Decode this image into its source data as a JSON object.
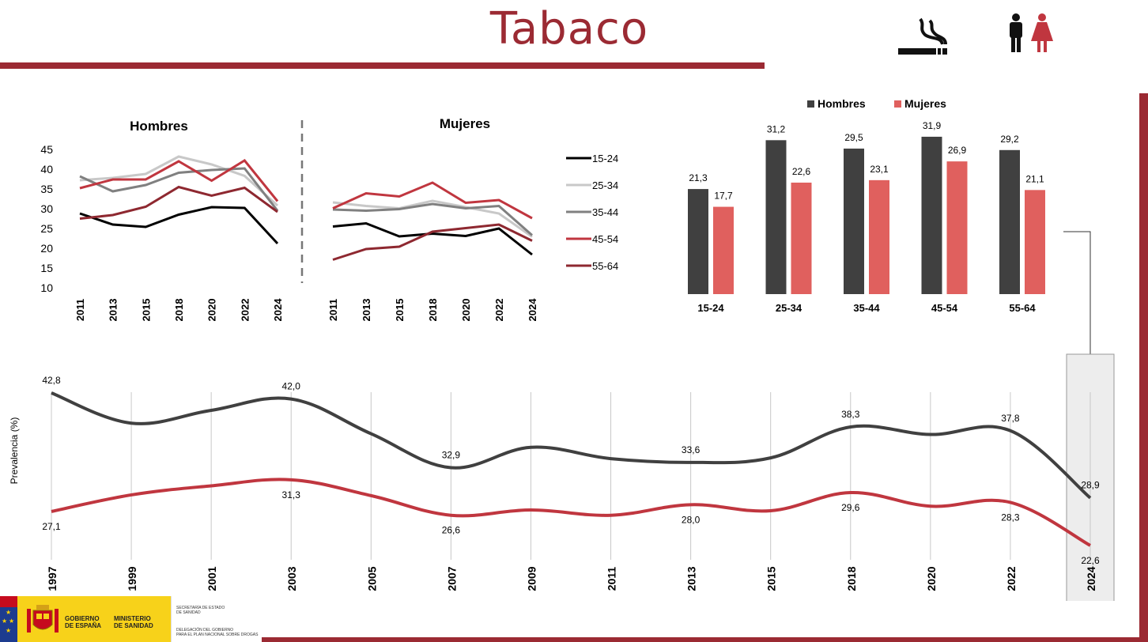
{
  "page": {
    "title": "Tabaco",
    "accent_color": "#9b2a33",
    "icons": [
      "cigarette-icon",
      "man-woman-icon"
    ]
  },
  "footer": {
    "logo_left_line1": "GOBIERNO",
    "logo_left_line2": "DE ESPAÑA",
    "logo_right_line1": "MINISTERIO",
    "logo_right_line2": "DE SANIDAD",
    "sec_line1": "SECRETARÍA DE ESTADO",
    "sec_line2": "DE SANIDAD",
    "deleg_line1": "DELEGACIÓN DEL GOBIERNO",
    "deleg_line2": "PARA EL PLAN NACIONAL SOBRE DROGAS"
  },
  "chart_data": [
    {
      "type": "line",
      "title": "Hombres",
      "x": [
        "2011",
        "2013",
        "2015",
        "2018",
        "2020",
        "2022",
        "2024"
      ],
      "ylim": [
        10,
        45
      ],
      "yticks": [
        45,
        40,
        35,
        30,
        25,
        20,
        15,
        10
      ],
      "series": [
        {
          "name": "15-24",
          "color": "#000000",
          "values": [
            28.8,
            26.0,
            25.4,
            28.5,
            30.4,
            30.2,
            21.2
          ]
        },
        {
          "name": "25-34",
          "color": "#c8c8c8",
          "values": [
            37.2,
            37.8,
            38.8,
            43.2,
            41.2,
            38.3,
            30.8
          ]
        },
        {
          "name": "35-44",
          "color": "#808080",
          "values": [
            38.2,
            34.4,
            36.0,
            39.1,
            39.8,
            40.2,
            29.5
          ]
        },
        {
          "name": "45-54",
          "color": "#c0363f",
          "values": [
            35.2,
            37.4,
            37.4,
            42.0,
            37.1,
            42.2,
            31.9
          ]
        },
        {
          "name": "55-64",
          "color": "#8e2830",
          "values": [
            27.5,
            28.4,
            30.5,
            35.5,
            33.3,
            35.3,
            29.2
          ]
        }
      ]
    },
    {
      "type": "line",
      "title": "Mujeres",
      "x": [
        "2011",
        "2013",
        "2015",
        "2018",
        "2020",
        "2022",
        "2024"
      ],
      "ylim": [
        10,
        45
      ],
      "series": [
        {
          "name": "15-24",
          "color": "#000000",
          "values": [
            25.5,
            26.3,
            23.0,
            23.7,
            23.1,
            25.0,
            18.4
          ]
        },
        {
          "name": "25-34",
          "color": "#c8c8c8",
          "values": [
            31.6,
            30.7,
            30.1,
            32.0,
            30.4,
            28.8,
            22.9
          ]
        },
        {
          "name": "35-44",
          "color": "#808080",
          "values": [
            29.8,
            29.5,
            29.9,
            31.2,
            30.1,
            30.7,
            23.3
          ]
        },
        {
          "name": "45-54",
          "color": "#c0363f",
          "values": [
            30.1,
            33.9,
            33.1,
            36.6,
            31.5,
            32.2,
            27.6
          ]
        },
        {
          "name": "55-64",
          "color": "#8e2830",
          "values": [
            17.1,
            19.8,
            20.4,
            24.2,
            25.1,
            26.0,
            21.9
          ]
        }
      ]
    },
    {
      "type": "bar",
      "categories": [
        "15-24",
        "25-34",
        "35-44",
        "45-54",
        "55-64"
      ],
      "legend_position": "top",
      "series": [
        {
          "name": "Hombres",
          "color": "#404040",
          "values": [
            21.3,
            31.2,
            29.5,
            31.9,
            29.2
          ],
          "labels": [
            "21,3",
            "31,2",
            "29,5",
            "31,9",
            "29,2"
          ]
        },
        {
          "name": "Mujeres",
          "color": "#e0605e",
          "values": [
            17.7,
            22.6,
            23.1,
            26.9,
            21.1
          ],
          "labels": [
            "17,7",
            "22,6",
            "23,1",
            "26,9",
            "21,1"
          ]
        }
      ]
    },
    {
      "type": "line",
      "ylabel": "Prevalencia (%)",
      "x": [
        "1997",
        "1999",
        "2001",
        "2003",
        "2005",
        "2007",
        "2009",
        "2011",
        "2013",
        "2015",
        "2018",
        "2020",
        "2022",
        "2024"
      ],
      "highlight": "2024",
      "series": [
        {
          "name": "Hombres",
          "color": "#404040",
          "values": [
            42.8,
            38.8,
            40.5,
            42.0,
            37.4,
            32.9,
            35.6,
            34.1,
            33.6,
            34.2,
            38.3,
            37.3,
            37.8,
            28.9
          ],
          "labels": [
            "42,8",
            null,
            null,
            "42,0",
            null,
            "32,9",
            null,
            null,
            "33,6",
            null,
            "38,3",
            null,
            "37,8",
            "28,9"
          ]
        },
        {
          "name": "Mujeres",
          "color": "#c0363f",
          "values": [
            27.1,
            29.3,
            30.5,
            31.3,
            29.2,
            26.6,
            27.3,
            26.6,
            28.0,
            27.2,
            29.6,
            27.8,
            28.3,
            22.6
          ],
          "labels": [
            "27,1",
            null,
            null,
            "31,3",
            null,
            "26,6",
            null,
            null,
            "28,0",
            null,
            "29,6",
            null,
            "28,3",
            "22,6"
          ]
        }
      ]
    }
  ]
}
